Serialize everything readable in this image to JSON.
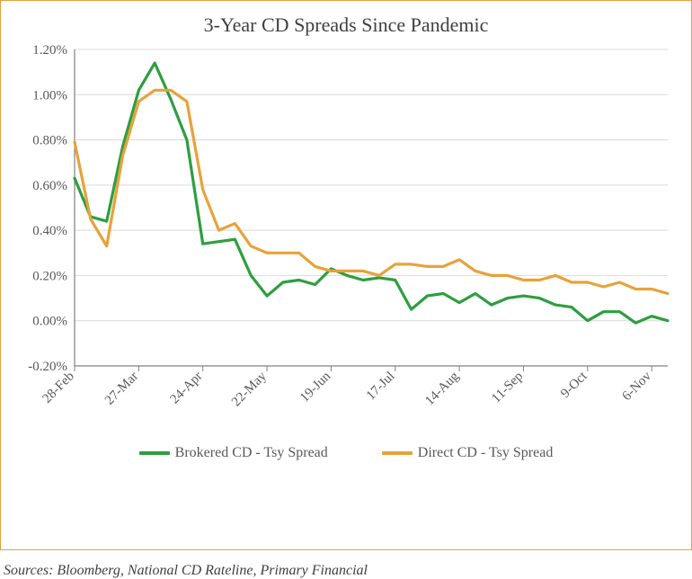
{
  "chart": {
    "type": "line",
    "title": "3-Year CD Spreads Since Pandemic",
    "title_fontsize": 22,
    "title_color": "#404040",
    "background_color": "#ffffff",
    "border_color": "#e8a23a",
    "grid_color": "#d9d9d9",
    "axis_line_color": "#808080",
    "axis_label_color": "#595959",
    "axis_label_fontsize": 15,
    "line_width": 3.2,
    "y": {
      "min": -0.2,
      "max": 1.2,
      "tick_step": 0.2,
      "format": "percent_2dp",
      "ticks": [
        -0.2,
        0.0,
        0.2,
        0.4,
        0.6,
        0.8,
        1.0,
        1.2
      ]
    },
    "x": {
      "n_points": 38,
      "tick_indices": [
        0,
        4,
        8,
        12,
        16,
        20,
        24,
        28,
        32,
        36
      ],
      "tick_labels": [
        "28-Feb",
        "27-Mar",
        "24-Apr",
        "22-May",
        "19-Jun",
        "17-Jul",
        "14-Aug",
        "11-Sep",
        "9-Oct",
        "6-Nov"
      ],
      "tick_rotation_deg": -45
    },
    "series": [
      {
        "name": "Brokered CD - Tsy Spread",
        "color": "#2e9e3f",
        "values": [
          0.63,
          0.46,
          0.44,
          0.77,
          1.02,
          1.14,
          0.98,
          0.8,
          0.34,
          0.35,
          0.36,
          0.2,
          0.11,
          0.17,
          0.18,
          0.16,
          0.23,
          0.2,
          0.18,
          0.19,
          0.18,
          0.05,
          0.11,
          0.12,
          0.08,
          0.12,
          0.07,
          0.1,
          0.11,
          0.1,
          0.07,
          0.06,
          0.0,
          0.04,
          0.04,
          -0.01,
          0.02,
          0.0
        ]
      },
      {
        "name": "Direct CD - Tsy Spread",
        "color": "#e8a23a",
        "values": [
          0.79,
          0.45,
          0.33,
          0.73,
          0.97,
          1.02,
          1.02,
          0.97,
          0.58,
          0.4,
          0.43,
          0.33,
          0.3,
          0.3,
          0.3,
          0.24,
          0.22,
          0.22,
          0.22,
          0.2,
          0.25,
          0.25,
          0.24,
          0.24,
          0.27,
          0.22,
          0.2,
          0.2,
          0.18,
          0.18,
          0.2,
          0.17,
          0.17,
          0.15,
          0.17,
          0.14,
          0.14,
          0.12
        ]
      }
    ],
    "legend": {
      "position": "bottom",
      "fontsize": 16,
      "text_color": "#595959"
    }
  },
  "sources": "Sources: Bloomberg, National CD Rateline, Primary Financial"
}
